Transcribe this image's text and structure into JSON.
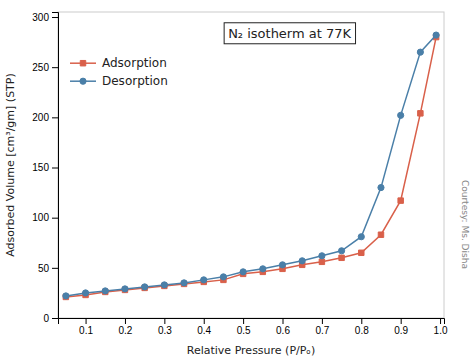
{
  "chart_data": {
    "type": "line",
    "title": "N₂ isotherm at 77K",
    "xlabel": "Relative Pressure (P/Pₒ)",
    "ylabel": "Adsorbed Volume [cm³/gm] (STP)",
    "annotations": [
      "Courtesy: Ms. Disha"
    ],
    "x": [
      0.05,
      0.1,
      0.15,
      0.2,
      0.25,
      0.3,
      0.35,
      0.4,
      0.45,
      0.5,
      0.55,
      0.6,
      0.65,
      0.7,
      0.75,
      0.8,
      0.85,
      0.9,
      0.95,
      0.99
    ],
    "series": [
      {
        "name": "Adsorption",
        "color": "#d9604a",
        "marker": "square",
        "values": [
          21,
          23,
          26,
          28,
          30,
          32,
          34,
          36,
          38,
          44,
          46,
          49,
          53,
          56,
          60,
          65,
          83,
          117,
          204,
          280
        ]
      },
      {
        "name": "Desorption",
        "color": "#4a7fa8",
        "marker": "circle",
        "values": [
          22,
          25,
          27,
          29,
          31,
          33,
          35,
          38,
          41,
          46,
          49,
          53,
          57,
          62,
          67,
          81,
          130,
          202,
          265,
          282
        ]
      }
    ],
    "xlim": [
      0.03,
      1.01
    ],
    "ylim": [
      0,
      305
    ],
    "xticks": [
      0.1,
      0.2,
      0.3,
      0.4,
      0.5,
      0.6,
      0.7,
      0.8,
      0.9,
      {
        "value": 1,
        "label": "1.0"
      }
    ],
    "yticks": [
      0,
      50,
      100,
      150,
      200,
      250,
      300
    ],
    "grid": false,
    "legend": "upper left"
  }
}
